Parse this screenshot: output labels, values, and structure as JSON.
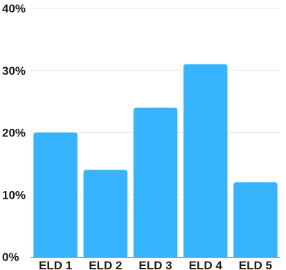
{
  "chart_data": {
    "type": "bar",
    "categories": [
      "ELD 1",
      "ELD 2",
      "ELD 3",
      "ELD 4",
      "ELD 5"
    ],
    "values": [
      20,
      14,
      24,
      31,
      12
    ],
    "value_unit": "%",
    "ylim": [
      0,
      40
    ],
    "yticks": [
      0,
      10,
      20,
      30,
      40
    ],
    "ytick_labels": [
      "0%",
      "10%",
      "20%",
      "30%",
      "40%"
    ],
    "grid": true,
    "legend": "none",
    "bar_color": "#35b3fc"
  }
}
